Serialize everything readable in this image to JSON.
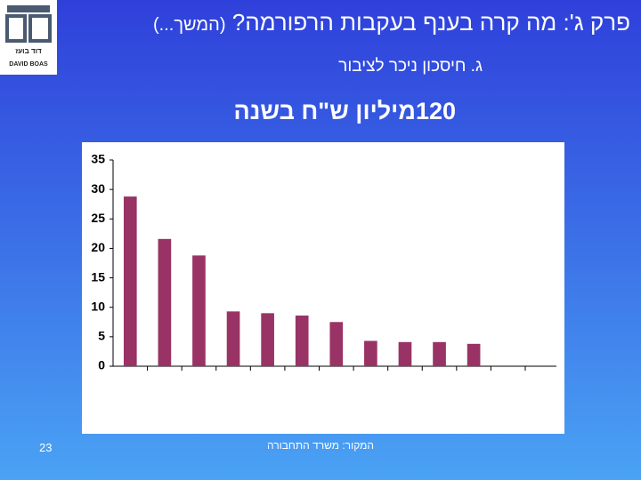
{
  "slide": {
    "title": "פרק ג': מה קרה בענף בעקבות הרפורמה?",
    "title_note": "(המשך...)",
    "subtitle": "ג. חיסכון ניכר לציבור",
    "headline": "120מיליון ש\"ח בשנה",
    "source": "המקור: משרד התחבורה",
    "page_number": "23",
    "logo": {
      "hebrew": "דוד בועז",
      "name": "DAVID BOAS"
    }
  },
  "chart_data": {
    "type": "bar",
    "categories": [
      null,
      null,
      null,
      null,
      null,
      null,
      null,
      null,
      null,
      null,
      null,
      null
    ],
    "values": [
      28.8,
      21.6,
      18.8,
      9.3,
      9.0,
      8.6,
      7.5,
      4.3,
      4.1,
      4.1,
      3.8,
      null
    ],
    "color": "#993366",
    "ylim": [
      0,
      35
    ],
    "yticks": [
      0,
      5,
      10,
      15,
      20,
      25,
      30,
      35
    ],
    "grid": false
  }
}
